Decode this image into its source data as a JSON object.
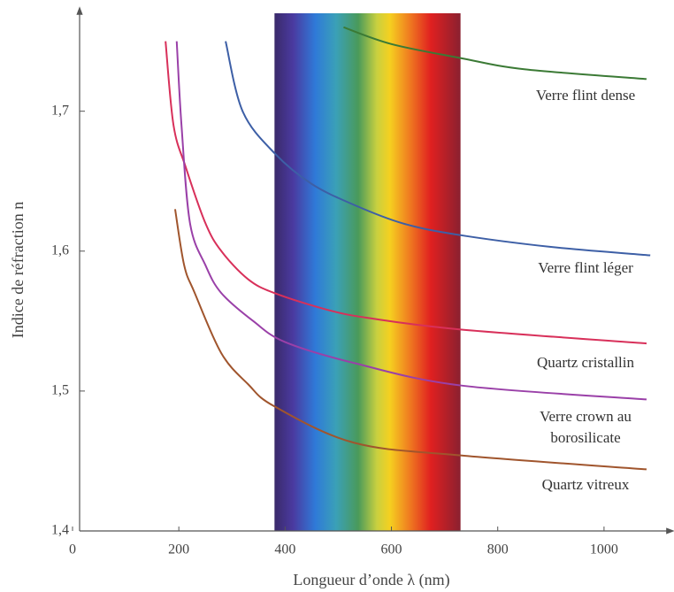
{
  "chart_data": {
    "type": "line",
    "xlabel": "Longueur d’onde λ (nm)",
    "ylabel": "Indice de réfraction n",
    "xlim": [
      0,
      1120
    ],
    "ylim": [
      1.4,
      1.77
    ],
    "xticks": [
      0,
      200,
      400,
      600,
      800,
      1000
    ],
    "yticks": [
      {
        "value": 1.4,
        "label": "1,4"
      },
      {
        "value": 1.5,
        "label": "1,5"
      },
      {
        "value": 1.6,
        "label": "1,6"
      },
      {
        "value": 1.7,
        "label": "1,7"
      }
    ],
    "visible_band": [
      380,
      730
    ],
    "series": [
      {
        "name": "Verre flint dense",
        "color": "#3b7a35",
        "x": [
          510,
          600,
          730,
          850,
          1080
        ],
        "values": [
          1.76,
          1.748,
          1.738,
          1.73,
          1.723
        ]
      },
      {
        "name": "Verre flint léger",
        "color": "#3d5fa6",
        "x": [
          288,
          320,
          380,
          450,
          530,
          620,
          720,
          900,
          1087
        ],
        "values": [
          1.75,
          1.7,
          1.67,
          1.648,
          1.633,
          1.62,
          1.612,
          1.603,
          1.597
        ]
      },
      {
        "name": "Quartz cristallin",
        "color": "#d8305a",
        "x": [
          175,
          190,
          213,
          250,
          280,
          330,
          380,
          480,
          560,
          730,
          1080
        ],
        "values": [
          1.75,
          1.69,
          1.66,
          1.62,
          1.6,
          1.58,
          1.57,
          1.558,
          1.552,
          1.544,
          1.534
        ]
      },
      {
        "name": "Verre crown au borosilicate",
        "color": "#9a40a8",
        "x": [
          196,
          205,
          221,
          250,
          280,
          340,
          400,
          530,
          730,
          1080
        ],
        "values": [
          1.75,
          1.69,
          1.62,
          1.59,
          1.57,
          1.55,
          1.535,
          1.52,
          1.504,
          1.494
        ]
      },
      {
        "name": "Quartz vitreux",
        "color": "#a0552d",
        "x": [
          193,
          210,
          230,
          280,
          330,
          380,
          530,
          730,
          1080
        ],
        "values": [
          1.63,
          1.59,
          1.57,
          1.527,
          1.505,
          1.489,
          1.463,
          1.454,
          1.444
        ]
      }
    ]
  }
}
